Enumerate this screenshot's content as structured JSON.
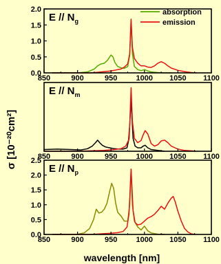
{
  "figure": {
    "ylabel": "σ [10⁻²⁰cm²]",
    "xlabel": "wavelength [nm]",
    "background": "#ffffcc",
    "legend": {
      "absorption": "absorption",
      "emission": "emission"
    }
  },
  "chart_data": [
    {
      "type": "line",
      "panel_label": "E // Ng",
      "title_main": "E // N",
      "title_sub": "g",
      "xlim": [
        850,
        1100
      ],
      "ylim": [
        0,
        2.0
      ],
      "x_ticks": [
        850,
        900,
        950,
        1000,
        1050,
        1100
      ],
      "y_ticks": [
        0.0,
        0.5,
        1.0,
        1.5,
        2.0
      ],
      "legend": "top-right",
      "series": [
        {
          "name": "absorption",
          "color": "#55aa00",
          "x": [
            862,
            900,
            915,
            925,
            930,
            935,
            940,
            945,
            950,
            953,
            956,
            960,
            965,
            970,
            975,
            978,
            980,
            982,
            985,
            990,
            995,
            1000,
            1005,
            1010,
            1020,
            1030,
            1040
          ],
          "y": [
            0.0,
            0.0,
            0.03,
            0.12,
            0.22,
            0.28,
            0.3,
            0.4,
            0.56,
            0.5,
            0.32,
            0.2,
            0.16,
            0.14,
            0.2,
            0.55,
            1.65,
            0.6,
            0.2,
            0.1,
            0.07,
            0.1,
            0.06,
            0.03,
            0.01,
            0.0,
            0.0
          ]
        },
        {
          "name": "emission",
          "color": "#e81010",
          "x": [
            862,
            920,
            930,
            940,
            950,
            955,
            960,
            965,
            970,
            975,
            978,
            980,
            982,
            985,
            990,
            995,
            1000,
            1005,
            1010,
            1015,
            1020,
            1025,
            1030,
            1035,
            1040,
            1050,
            1060,
            1070,
            1078
          ],
          "y": [
            0.0,
            0.0,
            0.02,
            0.04,
            0.06,
            0.08,
            0.1,
            0.12,
            0.18,
            0.28,
            0.6,
            1.68,
            0.8,
            0.45,
            0.3,
            0.22,
            0.22,
            0.18,
            0.17,
            0.22,
            0.3,
            0.35,
            0.3,
            0.22,
            0.15,
            0.08,
            0.04,
            0.01,
            0.0
          ]
        }
      ]
    },
    {
      "type": "line",
      "panel_label": "E // Nm",
      "title_main": "E // N",
      "title_sub": "m",
      "xlim": [
        850,
        1100
      ],
      "ylim": [
        0,
        1.6
      ],
      "x_ticks": [
        850,
        900,
        950,
        1000,
        1050,
        1100
      ],
      "series": [
        {
          "name": "absorption",
          "color": "#000000",
          "x": [
            850,
            870,
            890,
            905,
            915,
            922,
            927,
            930,
            933,
            937,
            942,
            948,
            955,
            962,
            968,
            974,
            977,
            980,
            983,
            986,
            990,
            995,
            998,
            1001,
            1005,
            1010,
            1020,
            1030
          ],
          "y": [
            0.04,
            0.05,
            0.04,
            0.03,
            0.06,
            0.12,
            0.2,
            0.26,
            0.2,
            0.14,
            0.1,
            0.08,
            0.06,
            0.05,
            0.05,
            0.08,
            0.3,
            1.2,
            0.3,
            0.12,
            0.08,
            0.08,
            0.12,
            0.14,
            0.08,
            0.04,
            0.02,
            0.0
          ]
        },
        {
          "name": "emission",
          "color": "#e81010",
          "x": [
            850,
            900,
            920,
            940,
            955,
            965,
            972,
            976,
            978,
            980,
            982,
            985,
            990,
            995,
            998,
            1001,
            1005,
            1010,
            1015,
            1020,
            1025,
            1030,
            1035,
            1040,
            1050,
            1060,
            1070,
            1076
          ],
          "y": [
            0.0,
            0.0,
            0.01,
            0.02,
            0.04,
            0.06,
            0.12,
            0.25,
            0.6,
            1.48,
            0.7,
            0.3,
            0.2,
            0.25,
            0.38,
            0.48,
            0.4,
            0.18,
            0.12,
            0.15,
            0.24,
            0.26,
            0.2,
            0.12,
            0.05,
            0.02,
            0.01,
            0.0
          ]
        }
      ]
    },
    {
      "type": "line",
      "panel_label": "E // Np",
      "title_main": "E // N",
      "title_sub": "p",
      "xlim": [
        850,
        1100
      ],
      "ylim": [
        0,
        2.5
      ],
      "x_ticks": [
        850,
        900,
        950,
        1000,
        1050,
        1100
      ],
      "y_ticks": [
        0.0,
        0.5,
        1.0,
        1.5,
        2.0,
        2.5
      ],
      "series": [
        {
          "name": "absorption",
          "color": "#8a8a00",
          "x": [
            862,
            900,
            910,
            918,
            924,
            928,
            932,
            936,
            940,
            944,
            948,
            951,
            954,
            957,
            960,
            965,
            970,
            975,
            978,
            980,
            982,
            985,
            990,
            995,
            1000,
            1005,
            1010,
            1020,
            1030
          ],
          "y": [
            0.0,
            0.01,
            0.05,
            0.2,
            0.5,
            0.85,
            0.72,
            0.75,
            0.85,
            1.05,
            1.45,
            1.72,
            1.55,
            1.05,
            0.75,
            0.62,
            0.45,
            0.45,
            1.0,
            2.2,
            1.0,
            0.45,
            0.25,
            0.15,
            0.28,
            0.12,
            0.05,
            0.01,
            0.0
          ]
        },
        {
          "name": "emission",
          "color": "#e81010",
          "x": [
            862,
            920,
            935,
            950,
            960,
            968,
            974,
            977,
            980,
            983,
            986,
            990,
            995,
            1000,
            1005,
            1010,
            1015,
            1020,
            1025,
            1030,
            1035,
            1040,
            1043,
            1046,
            1050,
            1055,
            1060,
            1065,
            1070,
            1076
          ],
          "y": [
            0.0,
            0.0,
            0.02,
            0.04,
            0.06,
            0.1,
            0.25,
            0.7,
            2.2,
            0.8,
            0.4,
            0.32,
            0.35,
            0.45,
            0.55,
            0.6,
            0.68,
            0.8,
            0.95,
            0.85,
            1.05,
            1.22,
            1.28,
            1.1,
            0.78,
            0.45,
            0.2,
            0.08,
            0.02,
            0.0
          ]
        }
      ]
    }
  ]
}
